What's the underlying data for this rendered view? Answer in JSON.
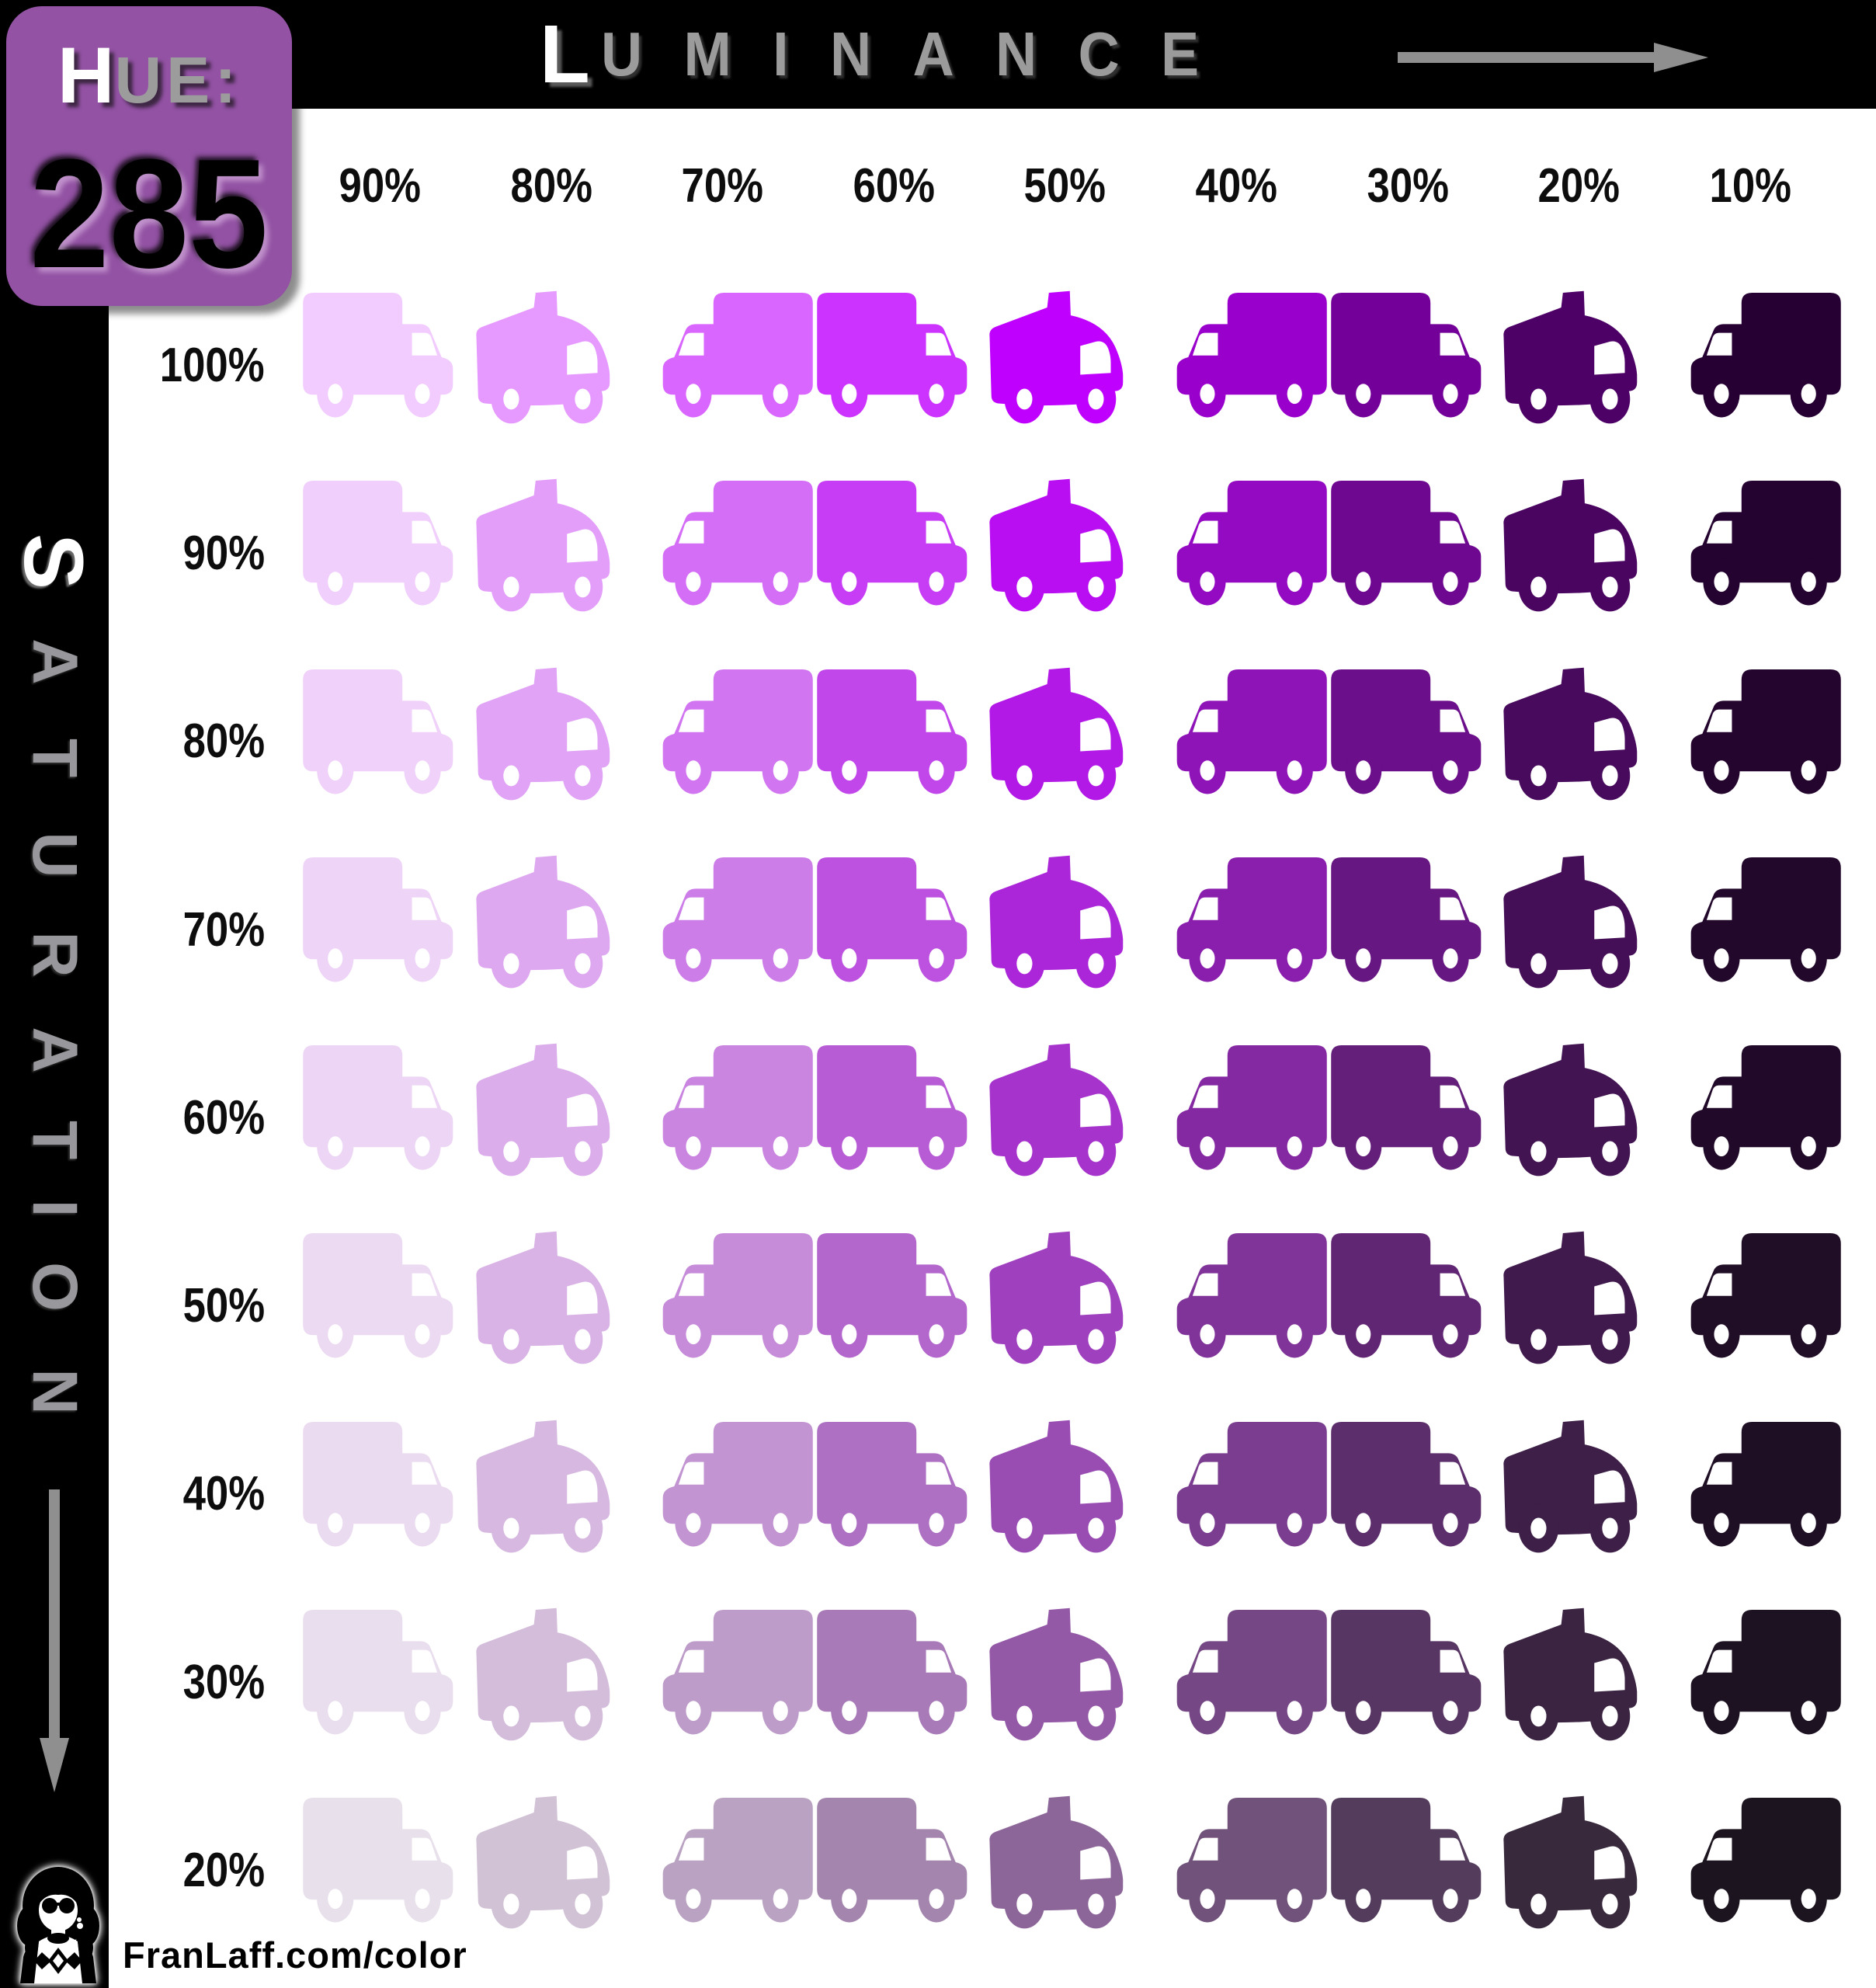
{
  "hue_badge": {
    "label_first_letter": "H",
    "label_rest": "UE:",
    "value": "285",
    "bg_color": "#9352a4"
  },
  "luminance_axis": {
    "first_letter": "L",
    "rest": "UMINANCE",
    "arrow_icon": "right-arrow-icon"
  },
  "saturation_axis": {
    "first_letter": "S",
    "rest": "ATURATION",
    "arrow_icon": "down-arrow-icon"
  },
  "column_headers": [
    "90%",
    "80%",
    "70%",
    "60%",
    "50%",
    "40%",
    "30%",
    "20%",
    "10%"
  ],
  "row_headers": [
    "100%",
    "90%",
    "80%",
    "70%",
    "60%",
    "50%",
    "40%",
    "30%",
    "20%"
  ],
  "footer": {
    "site_url": "FranLaff.com/color",
    "logo": "franlaff-avatar-logo"
  },
  "colors": {
    "bar_background": "#000000",
    "axis_text_gray": "#9b9b9b",
    "arrow_gray": "#8f8f8f",
    "hue_badge_purple": "#9352a4",
    "label_text": "#0d0d0d",
    "page_background": "#ffffff"
  },
  "chart_data": {
    "type": "heatmap",
    "title": "HSL color swatch chart for Hue 285 (trucks colored by saturation and luminance)",
    "hue": 285,
    "x_axis_label": "Luminance",
    "x_values_percent": [
      90,
      80,
      70,
      60,
      50,
      40,
      30,
      20,
      10
    ],
    "y_axis_label": "Saturation",
    "y_values_percent": [
      100,
      90,
      80,
      70,
      60,
      50,
      40,
      30,
      20
    ],
    "cell_color_rule": "hsl(285, saturation%, luminance%)",
    "cell_icon_pattern_by_column": [
      "box-truck-right",
      "dump-truck-right",
      "box-truck-left",
      "box-truck-right",
      "dump-truck-right",
      "box-truck-left",
      "box-truck-right",
      "dump-truck-right",
      "box-truck-left"
    ],
    "grid": "9 columns (luminance 90%..10%) x 9 rows (saturation 100%..20%)"
  }
}
